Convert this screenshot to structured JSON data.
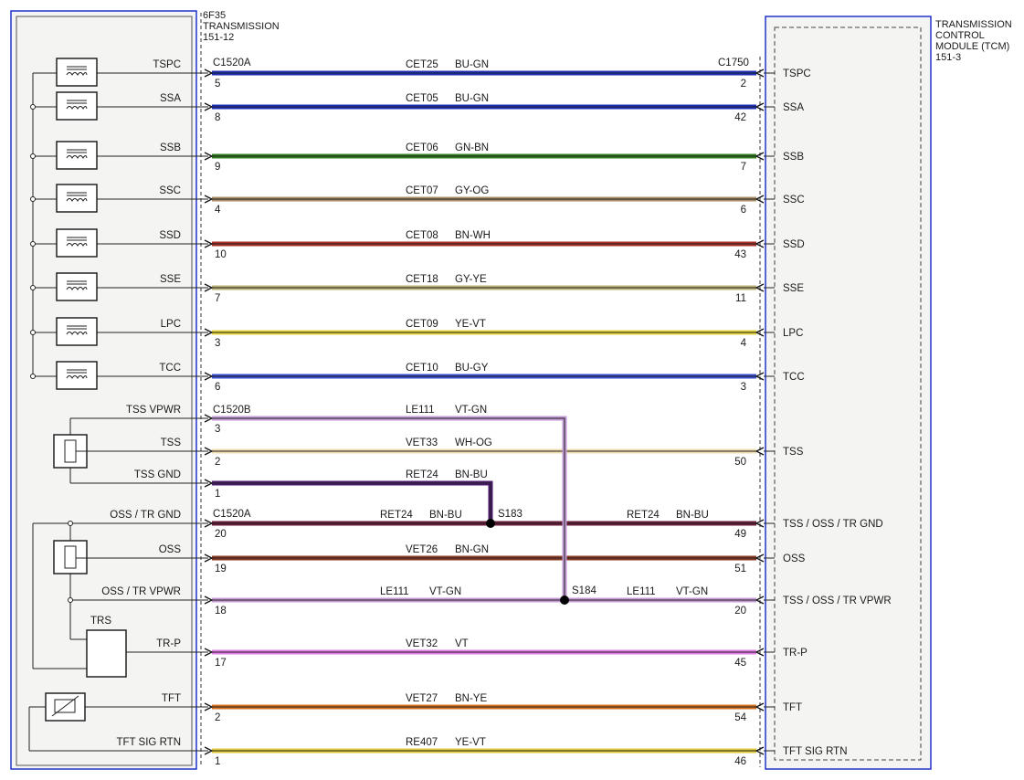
{
  "left_component": {
    "title_lines": [
      "6F35",
      "TRANSMISSION",
      "151-12"
    ],
    "connector_top": "C1520A",
    "connector_mid": "C1520B",
    "connector_low": "C1520A",
    "trs_label": "TRS"
  },
  "right_component": {
    "title_lines": [
      "TRANSMISSION",
      "CONTROL",
      "MODULE (TCM)",
      "151-3"
    ],
    "connector": "C1750"
  },
  "splices": [
    {
      "id": "s183",
      "label": "S183"
    },
    {
      "id": "s184",
      "label": "S184"
    }
  ],
  "circuits": [
    {
      "left_label": "TSPC",
      "left_pin": "5",
      "circuit": "CET25",
      "color_code": "BU-GN",
      "right_pin": "2",
      "right_label": "TSPC",
      "wire_color": "#1d2fb8"
    },
    {
      "left_label": "SSA",
      "left_pin": "8",
      "circuit": "CET05",
      "color_code": "BU-GN",
      "right_pin": "42",
      "right_label": "SSA",
      "wire_color": "#1d2fb8"
    },
    {
      "left_label": "SSB",
      "left_pin": "9",
      "circuit": "CET06",
      "color_code": "GN-BN",
      "right_pin": "7",
      "right_label": "SSB",
      "wire_color": "#2f7d1f"
    },
    {
      "left_label": "SSC",
      "left_pin": "4",
      "circuit": "CET07",
      "color_code": "GY-OG",
      "right_pin": "6",
      "right_label": "SSC",
      "wire_color": "#a88a64"
    },
    {
      "left_label": "SSD",
      "left_pin": "10",
      "circuit": "CET08",
      "color_code": "BN-WH",
      "right_pin": "43",
      "right_label": "SSD",
      "wire_color": "#a83228"
    },
    {
      "left_label": "SSE",
      "left_pin": "7",
      "circuit": "CET18",
      "color_code": "GY-YE",
      "right_pin": "11",
      "right_label": "SSE",
      "wire_color": "#b9b274"
    },
    {
      "left_label": "LPC",
      "left_pin": "3",
      "circuit": "CET09",
      "color_code": "YE-VT",
      "right_pin": "4",
      "right_label": "LPC",
      "wire_color": "#e2d43a"
    },
    {
      "left_label": "TCC",
      "left_pin": "6",
      "circuit": "CET10",
      "color_code": "BU-GY",
      "right_pin": "3",
      "right_label": "TCC",
      "wire_color": "#3a4fd0"
    },
    {
      "left_label": "TSS VPWR",
      "left_pin": "3",
      "circuit": "LE111",
      "color_code": "VT-GN",
      "right_pin": "",
      "right_label": "",
      "wire_color": "#c49ad6"
    },
    {
      "left_label": "TSS",
      "left_pin": "2",
      "circuit": "VET33",
      "color_code": "WH-OG",
      "right_pin": "50",
      "right_label": "TSS",
      "wire_color": "#efdcb0"
    },
    {
      "left_label": "TSS GND",
      "left_pin": "1",
      "circuit": "RET24",
      "color_code": "BN-BU",
      "right_pin": "",
      "right_label": "",
      "wire_color": "#4b1a6e"
    },
    {
      "left_label": "OSS / TR GND",
      "left_pin": "20",
      "circuit": "RET24",
      "color_code": "BN-BU",
      "right_circuit": "RET24",
      "right_color_code": "BN-BU",
      "right_pin": "49",
      "right_label": "TSS / OSS / TR GND",
      "wire_color": "#6b1c3a"
    },
    {
      "left_label": "OSS",
      "left_pin": "19",
      "circuit": "VET26",
      "color_code": "BN-GN",
      "right_pin": "51",
      "right_label": "OSS",
      "wire_color": "#8a3a24"
    },
    {
      "left_label": "OSS / TR VPWR",
      "left_pin": "18",
      "circuit": "LE111",
      "color_code": "VT-GN",
      "right_circuit": "LE111",
      "right_color_code": "VT-GN",
      "right_pin": "20",
      "right_label": "TSS / OSS / TR VPWR",
      "wire_color": "#c49ad6"
    },
    {
      "left_label": "TR-P",
      "left_pin": "17",
      "circuit": "VET32",
      "color_code": "VT",
      "right_pin": "45",
      "right_label": "TR-P",
      "wire_color": "#e27ae4"
    },
    {
      "left_label": "TFT",
      "left_pin": "2",
      "circuit": "VET27",
      "color_code": "BN-YE",
      "right_pin": "54",
      "right_label": "TFT",
      "wire_color": "#d2701e"
    },
    {
      "left_label": "TFT SIG RTN",
      "left_pin": "1",
      "circuit": "RE407",
      "color_code": "YE-VT",
      "right_pin": "46",
      "right_label": "TFT SIG RTN",
      "wire_color": "#e0c93a"
    }
  ]
}
